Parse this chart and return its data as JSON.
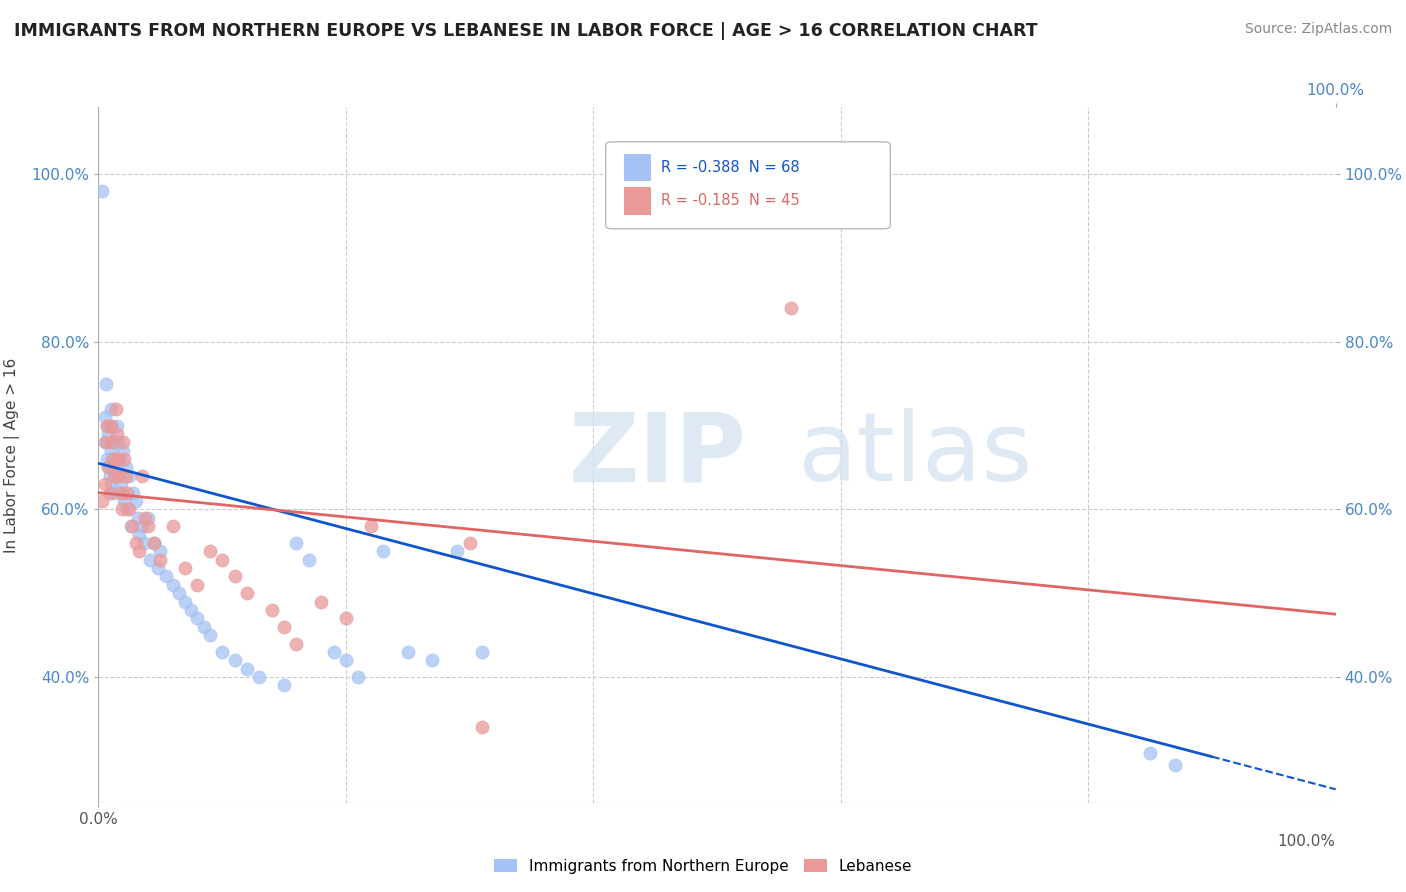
{
  "title": "IMMIGRANTS FROM NORTHERN EUROPE VS LEBANESE IN LABOR FORCE | AGE > 16 CORRELATION CHART",
  "source": "Source: ZipAtlas.com",
  "ylabel": "In Labor Force | Age > 16",
  "xlim": [
    0.0,
    1.0
  ],
  "ylim": [
    0.25,
    1.08
  ],
  "yticks": [
    0.4,
    0.6,
    0.8,
    1.0
  ],
  "yticklabels": [
    "40.0%",
    "60.0%",
    "80.0%",
    "100.0%"
  ],
  "xtick_left": "0.0%",
  "xtick_right": "100.0%",
  "legend_labels": [
    "Immigrants from Northern Europe",
    "Lebanese"
  ],
  "blue_R": -0.388,
  "blue_N": 68,
  "pink_R": -0.185,
  "pink_N": 45,
  "blue_color": "#a4c2f4",
  "pink_color": "#ea9999",
  "blue_line_color": "#1155cc",
  "pink_line_color": "#e06666",
  "grid_color": "#cccccc",
  "blue_scatter_x": [
    0.003,
    0.005,
    0.005,
    0.006,
    0.007,
    0.007,
    0.008,
    0.008,
    0.009,
    0.009,
    0.01,
    0.01,
    0.01,
    0.011,
    0.011,
    0.012,
    0.012,
    0.013,
    0.013,
    0.014,
    0.015,
    0.015,
    0.016,
    0.017,
    0.018,
    0.019,
    0.02,
    0.021,
    0.022,
    0.023,
    0.025,
    0.026,
    0.028,
    0.03,
    0.032,
    0.033,
    0.035,
    0.037,
    0.04,
    0.042,
    0.045,
    0.048,
    0.05,
    0.055,
    0.06,
    0.065,
    0.07,
    0.075,
    0.08,
    0.085,
    0.09,
    0.1,
    0.11,
    0.12,
    0.13,
    0.15,
    0.16,
    0.17,
    0.19,
    0.2,
    0.21,
    0.23,
    0.25,
    0.27,
    0.29,
    0.31,
    0.85,
    0.87
  ],
  "blue_scatter_y": [
    0.98,
    0.71,
    0.68,
    0.75,
    0.7,
    0.66,
    0.69,
    0.65,
    0.68,
    0.64,
    0.72,
    0.67,
    0.63,
    0.7,
    0.66,
    0.65,
    0.62,
    0.68,
    0.64,
    0.66,
    0.7,
    0.65,
    0.68,
    0.66,
    0.63,
    0.62,
    0.67,
    0.61,
    0.65,
    0.6,
    0.64,
    0.58,
    0.62,
    0.61,
    0.59,
    0.57,
    0.58,
    0.56,
    0.59,
    0.54,
    0.56,
    0.53,
    0.55,
    0.52,
    0.51,
    0.5,
    0.49,
    0.48,
    0.47,
    0.46,
    0.45,
    0.43,
    0.42,
    0.41,
    0.4,
    0.39,
    0.56,
    0.54,
    0.43,
    0.42,
    0.4,
    0.55,
    0.43,
    0.42,
    0.55,
    0.43,
    0.31,
    0.295
  ],
  "pink_scatter_x": [
    0.003,
    0.005,
    0.006,
    0.007,
    0.008,
    0.009,
    0.01,
    0.011,
    0.012,
    0.013,
    0.014,
    0.015,
    0.016,
    0.017,
    0.018,
    0.019,
    0.02,
    0.021,
    0.022,
    0.023,
    0.025,
    0.027,
    0.03,
    0.033,
    0.035,
    0.038,
    0.04,
    0.045,
    0.05,
    0.06,
    0.07,
    0.08,
    0.09,
    0.1,
    0.11,
    0.12,
    0.14,
    0.15,
    0.16,
    0.18,
    0.2,
    0.22,
    0.3,
    0.31,
    0.56
  ],
  "pink_scatter_y": [
    0.61,
    0.63,
    0.68,
    0.7,
    0.65,
    0.62,
    0.7,
    0.68,
    0.66,
    0.64,
    0.72,
    0.69,
    0.66,
    0.64,
    0.62,
    0.6,
    0.68,
    0.66,
    0.64,
    0.62,
    0.6,
    0.58,
    0.56,
    0.55,
    0.64,
    0.59,
    0.58,
    0.56,
    0.54,
    0.58,
    0.53,
    0.51,
    0.55,
    0.54,
    0.52,
    0.5,
    0.48,
    0.46,
    0.44,
    0.49,
    0.47,
    0.58,
    0.56,
    0.34,
    0.84
  ],
  "blue_line_start_x": 0.0,
  "blue_line_start_y": 0.655,
  "blue_line_end_x": 0.9,
  "blue_line_end_y": 0.305,
  "pink_line_start_x": 0.0,
  "pink_line_start_y": 0.62,
  "pink_line_end_x": 1.0,
  "pink_line_end_y": 0.475
}
